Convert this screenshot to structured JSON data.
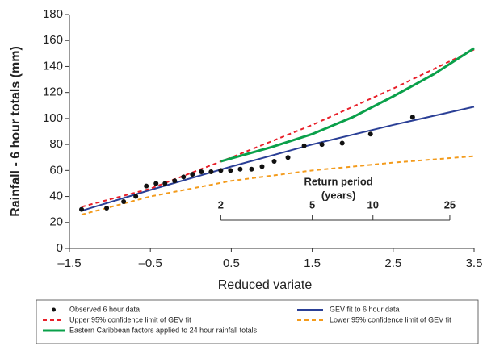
{
  "chart_data": {
    "type": "scatter",
    "xlabel": "Reduced variate",
    "ylabel": "Rainfall - 6 hour totals (mm)",
    "xlim": [
      -1.5,
      3.5
    ],
    "xticks": [
      {
        "value": -1.5,
        "label": "–1.5"
      },
      {
        "value": -0.5,
        "label": "–0.5"
      },
      0.5,
      1.5,
      2.5,
      3.5
    ],
    "ylim": [
      0,
      180
    ],
    "yticks": [
      0,
      20,
      40,
      60,
      80,
      100,
      120,
      140,
      160,
      180
    ],
    "series": [
      {
        "name": "Observed 6 hour data",
        "type": "scatter",
        "color": "#111111",
        "x": [
          -1.35,
          -1.04,
          -0.83,
          -0.68,
          -0.55,
          -0.43,
          -0.32,
          -0.2,
          -0.09,
          0.02,
          0.13,
          0.25,
          0.37,
          0.49,
          0.61,
          0.75,
          0.88,
          1.03,
          1.2,
          1.4,
          1.62,
          1.87,
          2.22,
          2.74
        ],
        "values": [
          30,
          31,
          36,
          40,
          48,
          50,
          50,
          52,
          55,
          57,
          59,
          59,
          60,
          60,
          61,
          61,
          63,
          67,
          70,
          79,
          80,
          81,
          88,
          101
        ]
      },
      {
        "name": "GEV fit to 6 hour data",
        "type": "line",
        "dash": "solid",
        "color": "#2a3f96",
        "x": [
          -1.35,
          -0.5,
          0.5,
          1.5,
          2.5,
          3.5
        ],
        "values": [
          29,
          45,
          63,
          80,
          95,
          109
        ]
      },
      {
        "name": "Upper 95% confidence limit of GEV fit",
        "type": "line",
        "dash": "dashed",
        "color": "#e8202a",
        "x": [
          -1.35,
          -0.5,
          0.5,
          1.5,
          2.5,
          3.5
        ],
        "values": [
          32,
          46,
          70,
          95,
          123,
          153
        ]
      },
      {
        "name": "Lower 95% confidence limit of GEV fit",
        "type": "line",
        "dash": "dashed",
        "color": "#f39b1c",
        "x": [
          -1.35,
          -0.5,
          0.5,
          1.5,
          2.5,
          3.5
        ],
        "values": [
          26,
          40,
          52,
          60,
          66,
          71
        ]
      },
      {
        "name": "Eastern Caribbean factors applied to 24 hour rainfall totals",
        "type": "line",
        "dash": "thick",
        "color": "#0aa04a",
        "x": [
          0.37,
          1.0,
          1.5,
          2.0,
          2.5,
          3.0,
          3.5
        ],
        "values": [
          67,
          78,
          88,
          101,
          117,
          134,
          154
        ]
      }
    ],
    "return_period": {
      "title": [
        "Return period",
        "(years)"
      ],
      "ticks": [
        {
          "value": 0.37,
          "label": "2"
        },
        {
          "value": 1.5,
          "label": "5"
        },
        {
          "value": 2.25,
          "label": "10"
        },
        {
          "value": 3.2,
          "label": "25"
        }
      ]
    }
  }
}
